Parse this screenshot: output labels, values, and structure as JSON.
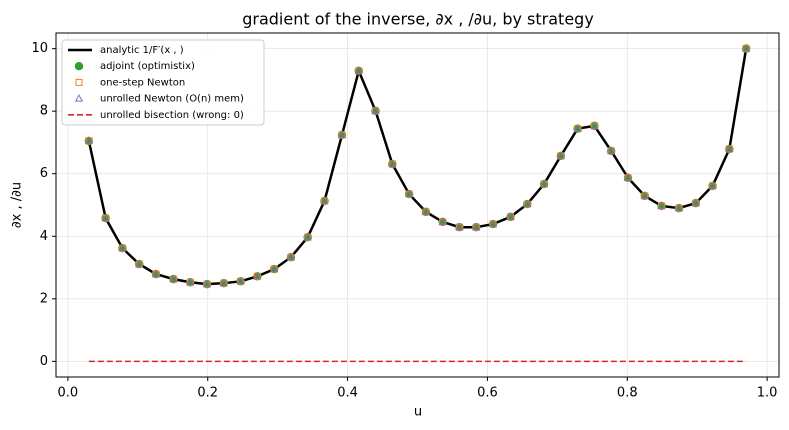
{
  "chart_data": {
    "type": "line",
    "title": "gradient of the inverse, ∂x , /∂u, by strategy",
    "xlabel": "u",
    "ylabel": "∂x , /∂u",
    "x": [
      0.03,
      0.054,
      0.078,
      0.102,
      0.126,
      0.151,
      0.175,
      0.199,
      0.223,
      0.247,
      0.271,
      0.295,
      0.319,
      0.343,
      0.367,
      0.392,
      0.416,
      0.44,
      0.464,
      0.488,
      0.512,
      0.536,
      0.56,
      0.584,
      0.608,
      0.633,
      0.657,
      0.681,
      0.705,
      0.729,
      0.753,
      0.777,
      0.801,
      0.825,
      0.849,
      0.874,
      0.898,
      0.922,
      0.946,
      0.97
    ],
    "series": [
      {
        "name": "analytic 1/F′(x , )",
        "color": "#000000",
        "marker": "line",
        "values": [
          7.05,
          4.58,
          3.62,
          3.11,
          2.79,
          2.63,
          2.53,
          2.47,
          2.5,
          2.56,
          2.72,
          2.95,
          3.33,
          3.97,
          5.13,
          7.24,
          9.29,
          8.01,
          6.31,
          5.35,
          4.78,
          4.46,
          4.29,
          4.29,
          4.39,
          4.62,
          5.03,
          5.67,
          6.57,
          7.44,
          7.53,
          6.73,
          5.87,
          5.29,
          4.97,
          4.9,
          5.06,
          5.61,
          6.79,
          10.0
        ]
      },
      {
        "name": "adjoint (optimistix)",
        "color": "#2ca02c",
        "marker": "circle",
        "values": [
          7.05,
          4.58,
          3.62,
          3.11,
          2.79,
          2.63,
          2.53,
          2.47,
          2.5,
          2.56,
          2.72,
          2.95,
          3.33,
          3.97,
          5.13,
          7.24,
          9.29,
          8.01,
          6.31,
          5.35,
          4.78,
          4.46,
          4.29,
          4.29,
          4.39,
          4.62,
          5.03,
          5.67,
          6.57,
          7.44,
          7.53,
          6.73,
          5.87,
          5.29,
          4.97,
          4.9,
          5.06,
          5.61,
          6.79,
          10.0
        ]
      },
      {
        "name": "one-step Newton",
        "color": "#ff7f0e",
        "marker": "square",
        "values": [
          7.05,
          4.58,
          3.62,
          3.11,
          2.79,
          2.63,
          2.53,
          2.47,
          2.5,
          2.56,
          2.72,
          2.95,
          3.33,
          3.97,
          5.13,
          7.24,
          9.29,
          8.01,
          6.31,
          5.35,
          4.78,
          4.46,
          4.29,
          4.29,
          4.39,
          4.62,
          5.03,
          5.67,
          6.57,
          7.44,
          7.53,
          6.73,
          5.87,
          5.29,
          4.97,
          4.9,
          5.06,
          5.61,
          6.79,
          10.0
        ]
      },
      {
        "name": "unrolled Newton (O(n) mem)",
        "color": "#9467bd",
        "marker": "triangle",
        "values": [
          7.05,
          4.58,
          3.62,
          3.11,
          2.79,
          2.63,
          2.53,
          2.47,
          2.5,
          2.56,
          2.72,
          2.95,
          3.33,
          3.97,
          5.13,
          7.24,
          9.29,
          8.01,
          6.31,
          5.35,
          4.78,
          4.46,
          4.29,
          4.29,
          4.39,
          4.62,
          5.03,
          5.67,
          6.57,
          7.44,
          7.53,
          6.73,
          5.87,
          5.29,
          4.97,
          4.9,
          5.06,
          5.61,
          6.79,
          10.0
        ]
      },
      {
        "name": "unrolled bisection (wrong: 0)",
        "color": "#d62728",
        "marker": "dashed",
        "values": [
          0,
          0,
          0,
          0,
          0,
          0,
          0,
          0,
          0,
          0,
          0,
          0,
          0,
          0,
          0,
          0,
          0,
          0,
          0,
          0,
          0,
          0,
          0,
          0,
          0,
          0,
          0,
          0,
          0,
          0,
          0,
          0,
          0,
          0,
          0,
          0,
          0,
          0,
          0,
          0
        ]
      }
    ],
    "xlim": [
      -0.017,
      1.017
    ],
    "ylim": [
      -0.5,
      10.5
    ],
    "xticks": [
      {
        "value": 0,
        "label": "0.0"
      },
      {
        "value": 0.2,
        "label": "0.2"
      },
      {
        "value": 0.4,
        "label": "0.4"
      },
      {
        "value": 0.6,
        "label": "0.6"
      },
      {
        "value": 0.8,
        "label": "0.8"
      },
      {
        "value": 1,
        "label": "1.0"
      }
    ],
    "yticks": [
      0,
      2,
      4,
      6,
      8,
      10
    ],
    "grid": true,
    "legend": "upper left"
  }
}
